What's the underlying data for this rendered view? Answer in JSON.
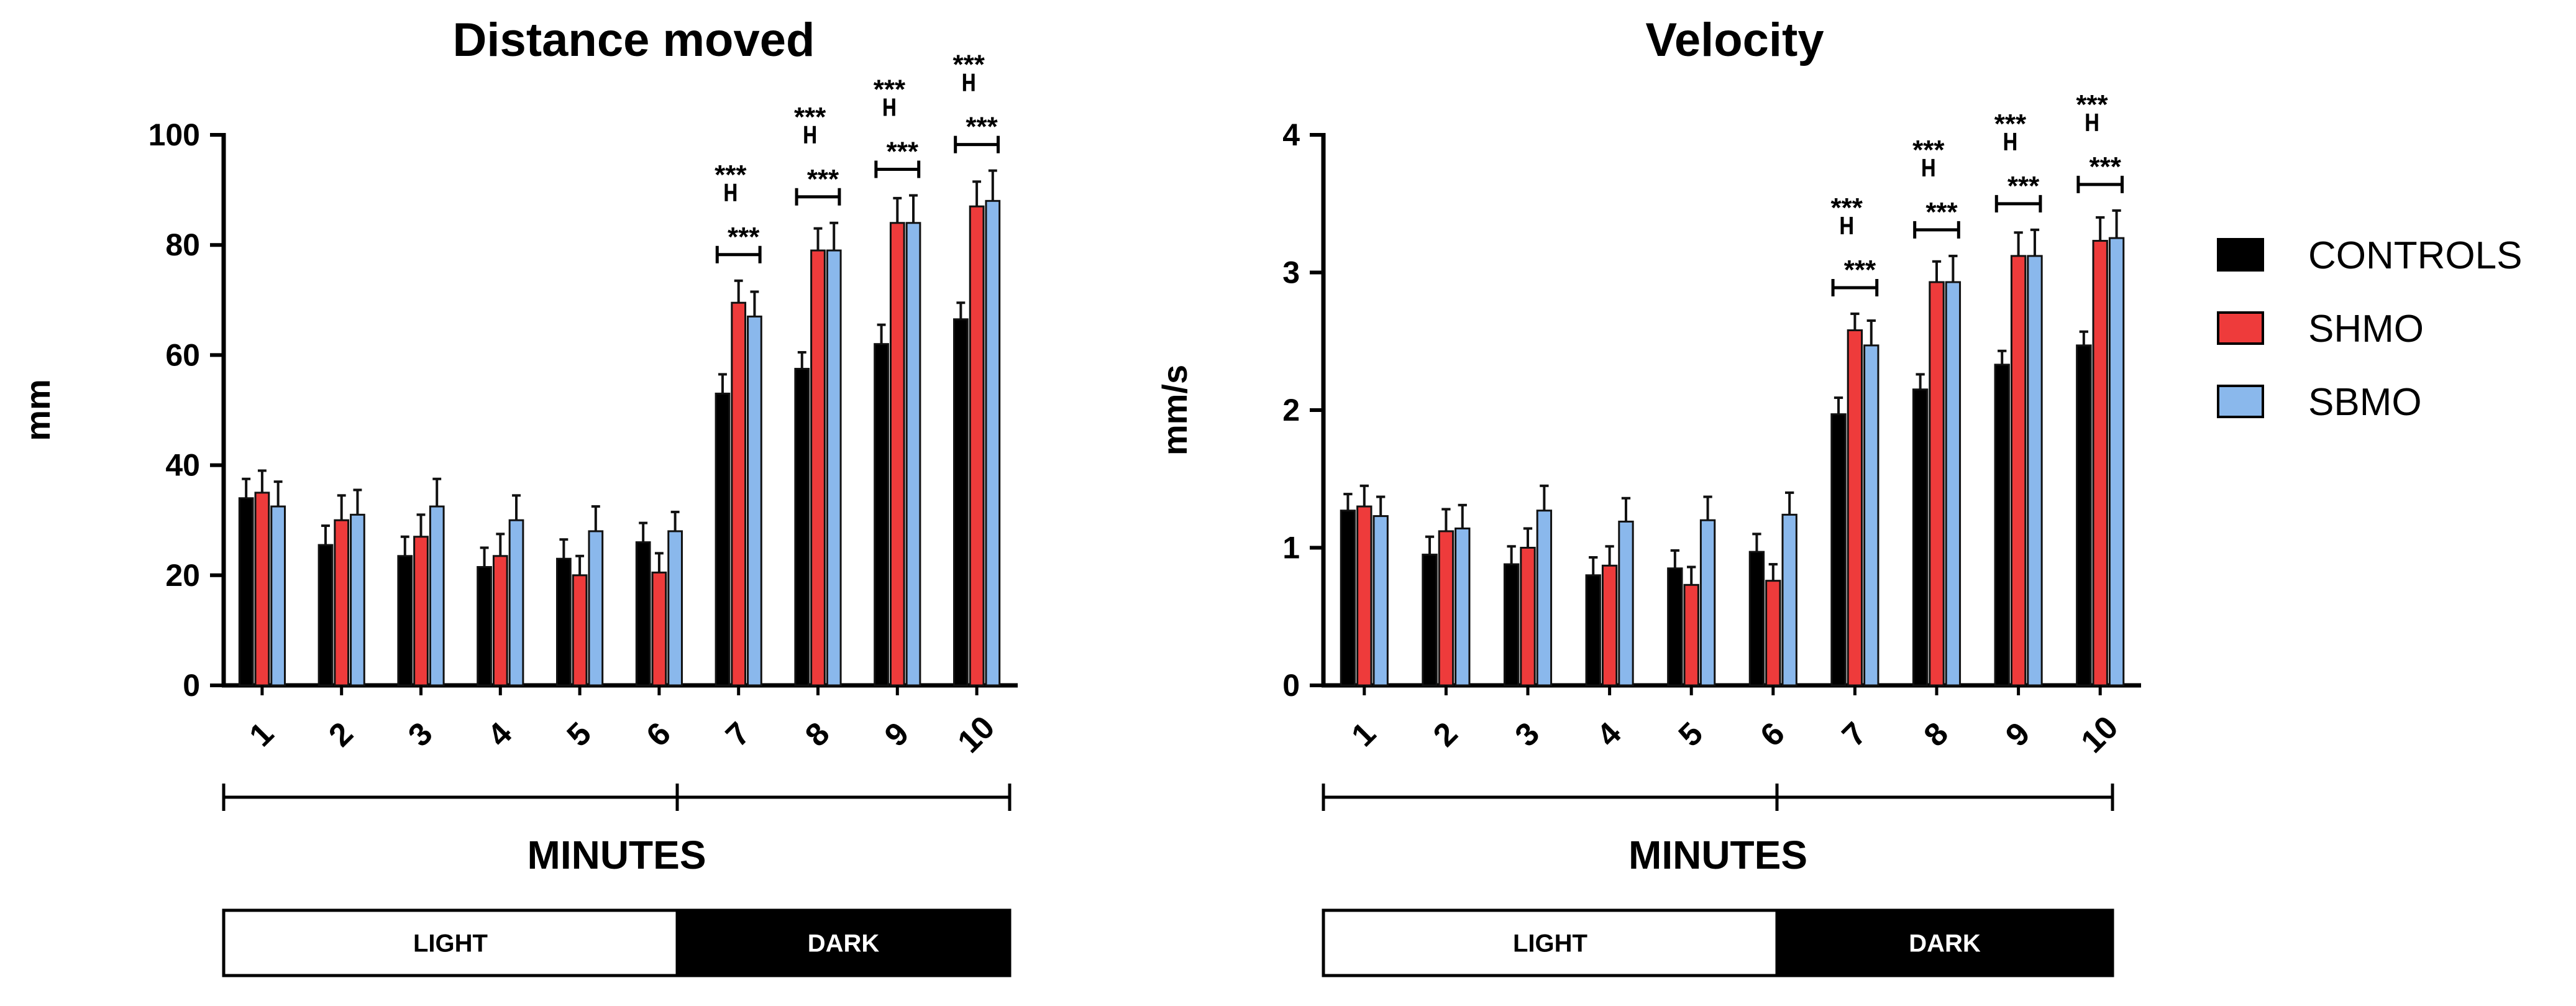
{
  "legend": [
    {
      "name": "CONTROLS",
      "color": "#000000"
    },
    {
      "name": "SHMO",
      "color": "#ee3b3b"
    },
    {
      "name": "SBMO",
      "color": "#8ab8ec"
    }
  ],
  "light_label": "LIGHT",
  "dark_label": "DARK",
  "significance_label": "***",
  "chart_data": [
    {
      "type": "bar",
      "title": "Distance moved",
      "xlabel": "MINUTES",
      "ylabel": "mm",
      "ylim": [
        0,
        100
      ],
      "yticks": [
        0,
        20,
        40,
        60,
        80,
        100
      ],
      "categories": [
        "1",
        "2",
        "3",
        "4",
        "5",
        "6",
        "7",
        "8",
        "9",
        "10"
      ],
      "series": [
        {
          "name": "CONTROLS",
          "values": [
            34,
            25.5,
            23.5,
            21.5,
            23,
            26,
            53,
            57.5,
            62,
            66.5
          ],
          "errors": [
            3.5,
            3.5,
            3.5,
            3.5,
            3.5,
            3.5,
            3.5,
            3,
            3.5,
            3
          ]
        },
        {
          "name": "SHMO",
          "values": [
            35,
            30,
            27,
            23.5,
            20,
            20.5,
            69.5,
            79,
            84,
            87
          ],
          "errors": [
            4,
            4.5,
            4,
            4,
            3.5,
            3.5,
            4,
            4,
            4.5,
            4.5
          ]
        },
        {
          "name": "SBMO",
          "values": [
            32.5,
            31,
            32.5,
            30,
            28,
            28,
            67,
            79,
            84,
            88
          ],
          "errors": [
            4.5,
            4.5,
            5,
            4.5,
            4.5,
            3.5,
            4.5,
            5,
            5,
            5.5
          ]
        }
      ],
      "significance": [
        {
          "minute": "7",
          "pairs": [
            "CONTROLS-SHMO",
            "CONTROLS-SBMO"
          ]
        },
        {
          "minute": "8",
          "pairs": [
            "CONTROLS-SHMO",
            "CONTROLS-SBMO"
          ]
        },
        {
          "minute": "9",
          "pairs": [
            "CONTROLS-SHMO",
            "CONTROLS-SBMO"
          ]
        },
        {
          "minute": "10",
          "pairs": [
            "CONTROLS-SHMO",
            "CONTROLS-SBMO"
          ]
        }
      ],
      "phases": [
        {
          "label": "LIGHT",
          "from": "1",
          "to": "6"
        },
        {
          "label": "DARK",
          "from": "6",
          "to": "10"
        }
      ]
    },
    {
      "type": "bar",
      "title": "Velocity",
      "xlabel": "MINUTES",
      "ylabel": "mm/s",
      "ylim": [
        0,
        4
      ],
      "yticks": [
        0,
        1,
        2,
        3,
        4
      ],
      "categories": [
        "1",
        "2",
        "3",
        "4",
        "5",
        "6",
        "7",
        "8",
        "9",
        "10"
      ],
      "series": [
        {
          "name": "CONTROLS",
          "values": [
            1.27,
            0.95,
            0.88,
            0.8,
            0.85,
            0.97,
            1.97,
            2.15,
            2.33,
            2.47
          ],
          "errors": [
            0.12,
            0.13,
            0.13,
            0.13,
            0.13,
            0.13,
            0.12,
            0.11,
            0.1,
            0.1
          ]
        },
        {
          "name": "SHMO",
          "values": [
            1.3,
            1.12,
            1.0,
            0.87,
            0.73,
            0.76,
            2.58,
            2.93,
            3.12,
            3.23
          ],
          "errors": [
            0.15,
            0.16,
            0.14,
            0.14,
            0.13,
            0.12,
            0.12,
            0.15,
            0.17,
            0.17
          ]
        },
        {
          "name": "SBMO",
          "values": [
            1.23,
            1.14,
            1.27,
            1.19,
            1.2,
            1.24,
            2.47,
            2.93,
            3.12,
            3.25
          ],
          "errors": [
            0.14,
            0.17,
            0.18,
            0.17,
            0.17,
            0.16,
            0.18,
            0.19,
            0.19,
            0.2
          ]
        }
      ],
      "significance": [
        {
          "minute": "7",
          "pairs": [
            "CONTROLS-SHMO",
            "CONTROLS-SBMO"
          ]
        },
        {
          "minute": "8",
          "pairs": [
            "CONTROLS-SHMO",
            "CONTROLS-SBMO"
          ]
        },
        {
          "minute": "9",
          "pairs": [
            "CONTROLS-SHMO",
            "CONTROLS-SBMO"
          ]
        },
        {
          "minute": "10",
          "pairs": [
            "CONTROLS-SHMO",
            "CONTROLS-SBMO"
          ]
        }
      ],
      "phases": [
        {
          "label": "LIGHT",
          "from": "1",
          "to": "6"
        },
        {
          "label": "DARK",
          "from": "6",
          "to": "10"
        }
      ]
    }
  ]
}
